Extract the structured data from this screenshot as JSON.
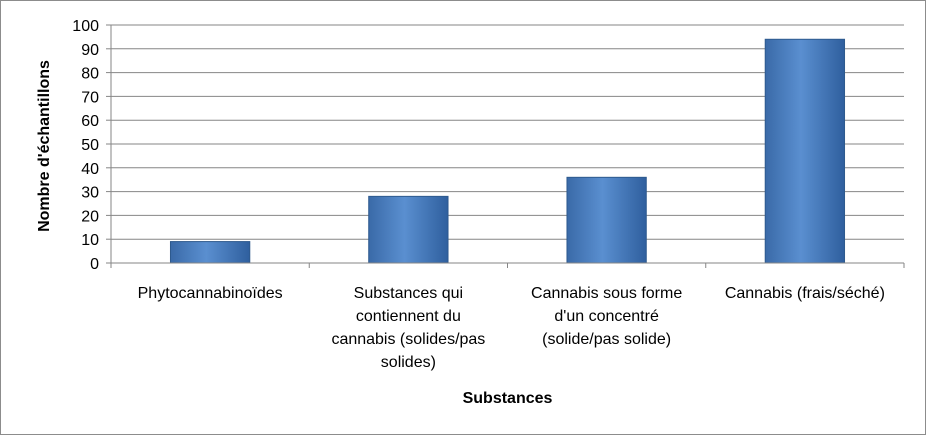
{
  "chart_data": {
    "type": "bar",
    "categories": [
      [
        "Phytocannabinoïdes"
      ],
      [
        "Substances qui",
        "contiennent du",
        "cannabis (solides/pas",
        "solides)"
      ],
      [
        "Cannabis sous forme",
        "d'un concentré",
        "(solide/pas solide)"
      ],
      [
        "Cannabis (frais/séché)"
      ]
    ],
    "values": [
      9,
      28,
      36,
      94
    ],
    "xlabel": "Substances",
    "ylabel": "Nombre d'échantillons",
    "ylim": [
      0,
      100
    ],
    "ytick_step": 10,
    "grid": true,
    "legend": "none",
    "bar_color": "#4a7ebb",
    "bar_edge_color": "#2e5a8e",
    "grid_color": "#868686"
  }
}
